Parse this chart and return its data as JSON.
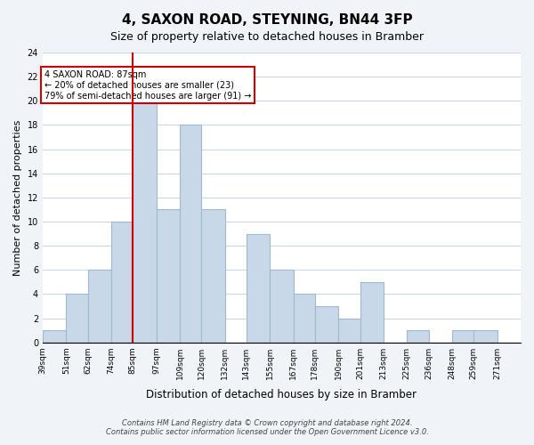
{
  "title": "4, SAXON ROAD, STEYNING, BN44 3FP",
  "subtitle": "Size of property relative to detached houses in Bramber",
  "xlabel": "Distribution of detached houses by size in Bramber",
  "ylabel": "Number of detached properties",
  "bin_labels": [
    "39sqm",
    "51sqm",
    "62sqm",
    "74sqm",
    "85sqm",
    "97sqm",
    "109sqm",
    "120sqm",
    "132sqm",
    "143sqm",
    "155sqm",
    "167sqm",
    "178sqm",
    "190sqm",
    "201sqm",
    "213sqm",
    "225sqm",
    "236sqm",
    "248sqm",
    "259sqm",
    "271sqm"
  ],
  "bin_edges": [
    39,
    51,
    62,
    74,
    85,
    97,
    109,
    120,
    132,
    143,
    155,
    167,
    178,
    190,
    201,
    213,
    225,
    236,
    248,
    259,
    271
  ],
  "values": [
    1,
    4,
    6,
    10,
    20,
    11,
    18,
    11,
    0,
    9,
    6,
    4,
    3,
    2,
    5,
    0,
    1,
    0,
    1,
    1
  ],
  "bar_color": "#c8d8e8",
  "bar_edge_color": "#a0b8d0",
  "highlight_bar_index": 4,
  "highlight_line_color": "#cc0000",
  "annotation_text": "4 SAXON ROAD: 87sqm\n← 20% of detached houses are smaller (23)\n79% of semi-detached houses are larger (91) →",
  "annotation_box_color": "white",
  "annotation_box_edge_color": "#cc0000",
  "ylim": [
    0,
    24
  ],
  "yticks": [
    0,
    2,
    4,
    6,
    8,
    10,
    12,
    14,
    16,
    18,
    20,
    22,
    24
  ],
  "footer_line1": "Contains HM Land Registry data © Crown copyright and database right 2024.",
  "footer_line2": "Contains public sector information licensed under the Open Government Licence v3.0.",
  "background_color": "#f0f4f8",
  "plot_bg_color": "white",
  "grid_color": "#c8d8e8"
}
